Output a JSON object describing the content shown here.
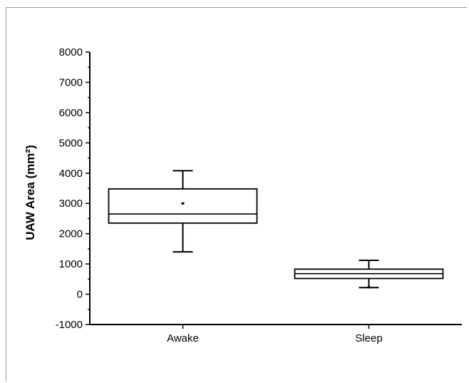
{
  "chart_data": {
    "type": "box",
    "title": "",
    "xlabel": "",
    "ylabel": "UAW Area (mm²)",
    "ylim": [
      -1000,
      8000
    ],
    "yticks": [
      -1000,
      0,
      1000,
      2000,
      3000,
      4000,
      5000,
      6000,
      7000,
      8000
    ],
    "categories": [
      "Awake",
      "Sleep"
    ],
    "boxes": [
      {
        "category": "Awake",
        "whisker_low": 1400,
        "q1": 2350,
        "median": 2650,
        "mean": 3000,
        "q3": 3480,
        "whisker_high": 4080
      },
      {
        "category": "Sleep",
        "whisker_low": 220,
        "q1": 520,
        "median": 680,
        "mean": 230,
        "q3": 830,
        "whisker_high": 1120
      }
    ],
    "grid": false,
    "legend": "none"
  }
}
